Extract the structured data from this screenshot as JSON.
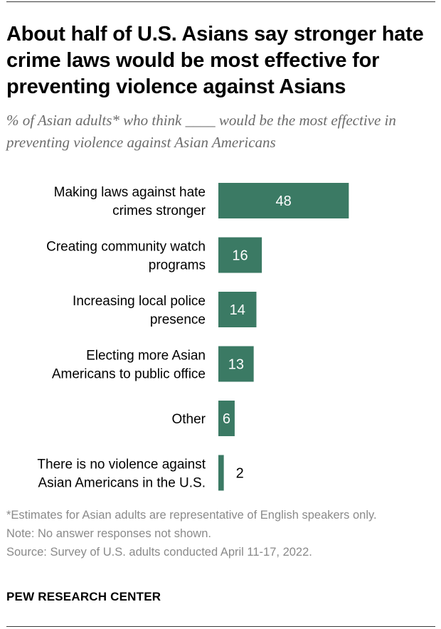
{
  "header": {
    "title": "About half of U.S. Asians say stronger hate crime laws would be most effective for preventing violence against Asians",
    "subtitle": "% of Asian adults* who think ____ would be the most effective in preventing violence against Asian Americans"
  },
  "colors": {
    "bar": "#3b7a64",
    "label_inside": "#ffffff",
    "label_outside": "#000000"
  },
  "chart_data": {
    "type": "bar",
    "orientation": "horizontal",
    "categories": [
      [
        "Making laws against hate",
        "crimes stronger"
      ],
      [
        "Creating community watch",
        "programs"
      ],
      [
        "Increasing local police",
        "presence"
      ],
      [
        "Electing more Asian",
        "Americans to public office"
      ],
      [
        "Other"
      ],
      [
        "There is no violence against",
        "Asian Americans in the U.S."
      ]
    ],
    "values": [
      48,
      16,
      14,
      13,
      6,
      2
    ],
    "value_labels": [
      "48",
      "16",
      "14",
      "13",
      "6",
      "2"
    ],
    "xlim": [
      0,
      100
    ]
  },
  "footer": {
    "notes": [
      "*Estimates for Asian adults are representative of English speakers only.",
      "Note: No answer responses not shown.",
      "Source: Survey of U.S. adults conducted April 11-17, 2022."
    ],
    "brand": "PEW RESEARCH CENTER"
  }
}
